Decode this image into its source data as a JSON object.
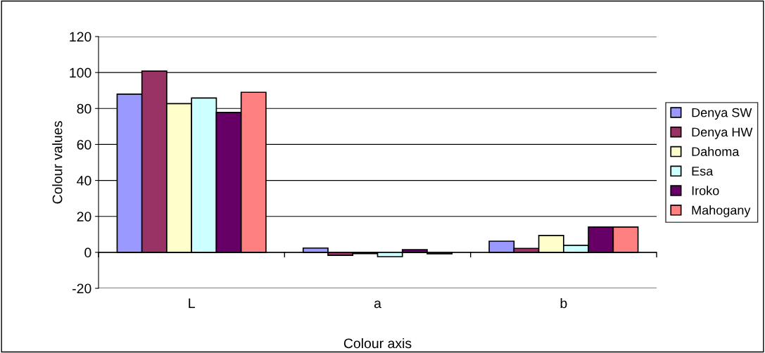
{
  "chart_data": {
    "type": "bar",
    "xlabel": "Colour axis",
    "ylabel": "Colour values",
    "categories": [
      "L",
      "a",
      "b"
    ],
    "series": [
      {
        "name": "Denya SW",
        "color": "#9999ff",
        "values": [
          88.0,
          2.4,
          6.2
        ]
      },
      {
        "name": "Denya HW",
        "color": "#993366",
        "values": [
          100.8,
          -1.7,
          2.2
        ]
      },
      {
        "name": "Dahoma",
        "color": "#ffffcc",
        "values": [
          82.7,
          -0.7,
          9.4
        ]
      },
      {
        "name": "Esa",
        "color": "#ccffff",
        "values": [
          85.8,
          -2.4,
          3.9
        ]
      },
      {
        "name": "Iroko",
        "color": "#660066",
        "values": [
          77.8,
          1.5,
          14.1
        ]
      },
      {
        "name": "Mahogany",
        "color": "#ff8080",
        "values": [
          89.0,
          -0.8,
          14.1
        ]
      }
    ],
    "ylim": [
      -20,
      120
    ],
    "yticks": [
      -20,
      0,
      20,
      40,
      60,
      80,
      100,
      120
    ],
    "grid": "y",
    "legend": "right"
  }
}
